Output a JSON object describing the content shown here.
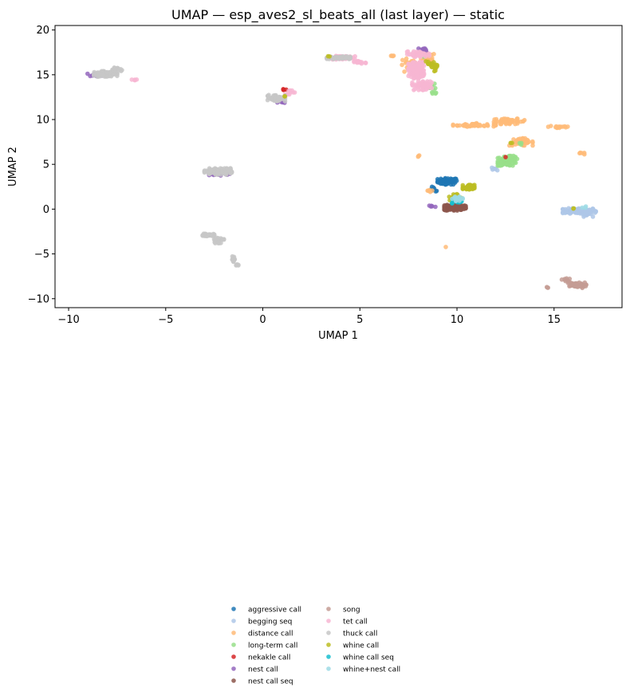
{
  "chart_data": {
    "type": "scatter",
    "title": "UMAP — esp_aves2_sl_beats_all (last layer) — static",
    "xlabel": "UMAP 1",
    "ylabel": "UMAP 2",
    "xlim": [
      -10.7,
      18.5
    ],
    "ylim": [
      -11,
      20.5
    ],
    "xticks": [
      -10,
      -5,
      0,
      5,
      10,
      15
    ],
    "yticks": [
      -10,
      -5,
      0,
      5,
      10,
      15,
      20
    ],
    "grid": false,
    "legend_placement": "bottom-center, two columns",
    "series": [
      {
        "name": "aggressive call",
        "color": "#1f77b4",
        "clusters": [
          [
            9.5,
            3.1,
            0.5,
            0.35,
            70
          ],
          [
            8.8,
            2.2,
            0.25,
            0.3,
            8
          ]
        ]
      },
      {
        "name": "begging seq",
        "color": "#aec7e8",
        "clusters": [
          [
            16.3,
            -0.2,
            0.85,
            0.3,
            110
          ],
          [
            16.7,
            -0.6,
            0.3,
            0.25,
            15
          ],
          [
            12.0,
            4.5,
            0.2,
            0.2,
            6
          ]
        ]
      },
      {
        "name": "distance call",
        "color": "#ffbb78",
        "clusters": [
          [
            10.9,
            9.4,
            1.1,
            0.2,
            45
          ],
          [
            12.7,
            9.8,
            0.8,
            0.3,
            50
          ],
          [
            13.3,
            7.5,
            0.6,
            0.4,
            40
          ],
          [
            15.3,
            9.2,
            0.6,
            0.2,
            14
          ],
          [
            8.5,
            16.8,
            0.35,
            0.6,
            30
          ],
          [
            7.5,
            16.0,
            0.4,
            0.8,
            20
          ],
          [
            6.6,
            17.1,
            0.2,
            0.1,
            4
          ],
          [
            16.4,
            6.2,
            0.2,
            0.1,
            5
          ],
          [
            8.1,
            5.9,
            0.1,
            0.1,
            3
          ],
          [
            9.4,
            -4.2,
            0.05,
            0.05,
            1
          ],
          [
            8.6,
            2.1,
            0.2,
            0.2,
            6
          ]
        ]
      },
      {
        "name": "long-term call",
        "color": "#98df8a",
        "clusters": [
          [
            12.6,
            5.4,
            0.5,
            0.55,
            90
          ],
          [
            13.3,
            7.3,
            0.1,
            0.1,
            3
          ],
          [
            8.8,
            13.5,
            0.2,
            0.6,
            10
          ],
          [
            8.1,
            17.2,
            0.2,
            0.2,
            6
          ]
        ]
      },
      {
        "name": "nekakle call",
        "color": "#d62728",
        "clusters": [
          [
            1.1,
            13.3,
            0.1,
            0.1,
            4
          ],
          [
            12.5,
            5.8,
            0.05,
            0.05,
            1
          ]
        ]
      },
      {
        "name": "nest call",
        "color": "#9467bd",
        "clusters": [
          [
            -8.5,
            15.0,
            0.6,
            0.15,
            20
          ],
          [
            -2.4,
            3.9,
            0.7,
            0.15,
            25
          ],
          [
            1.0,
            11.9,
            0.25,
            0.15,
            8
          ],
          [
            3.6,
            16.9,
            0.3,
            0.1,
            8
          ],
          [
            8.3,
            17.8,
            0.3,
            0.2,
            12
          ],
          [
            8.7,
            0.3,
            0.2,
            0.2,
            6
          ]
        ]
      },
      {
        "name": "nest call seq",
        "color": "#8c564b",
        "clusters": [
          [
            9.9,
            0.2,
            0.55,
            0.35,
            110
          ]
        ]
      },
      {
        "name": "song",
        "color": "#c49c94",
        "clusters": [
          [
            16.1,
            -8.5,
            0.55,
            0.3,
            50
          ],
          [
            15.6,
            -7.9,
            0.2,
            0.2,
            10
          ],
          [
            14.7,
            -8.8,
            0.08,
            0.1,
            3
          ]
        ]
      },
      {
        "name": "tet call",
        "color": "#f7b6d2",
        "clusters": [
          [
            7.9,
            15.5,
            0.4,
            0.9,
            140
          ],
          [
            8.2,
            13.8,
            0.5,
            0.5,
            60
          ],
          [
            8.0,
            17.3,
            0.6,
            0.3,
            40
          ],
          [
            4.3,
            16.9,
            0.7,
            0.2,
            40
          ],
          [
            5.0,
            16.4,
            0.3,
            0.15,
            15
          ],
          [
            -6.6,
            14.4,
            0.15,
            0.1,
            5
          ],
          [
            1.4,
            13.1,
            0.25,
            0.3,
            10
          ]
        ]
      },
      {
        "name": "thuck call",
        "color": "#c7c7c7",
        "clusters": [
          [
            -8.1,
            15.1,
            0.6,
            0.3,
            90
          ],
          [
            -7.5,
            15.6,
            0.25,
            0.2,
            20
          ],
          [
            -2.3,
            4.2,
            0.7,
            0.35,
            140
          ],
          [
            -2.8,
            -2.9,
            0.3,
            0.15,
            25
          ],
          [
            -2.3,
            -3.5,
            0.3,
            0.3,
            20
          ],
          [
            -1.5,
            -5.6,
            0.1,
            0.35,
            15
          ],
          [
            -1.3,
            -6.2,
            0.1,
            0.1,
            5
          ],
          [
            0.7,
            12.4,
            0.45,
            0.35,
            60
          ],
          [
            3.9,
            16.9,
            0.6,
            0.15,
            50
          ]
        ]
      },
      {
        "name": "whine call",
        "color": "#bcbd22",
        "clusters": [
          [
            10.6,
            2.4,
            0.3,
            0.3,
            50
          ],
          [
            9.9,
            1.3,
            0.3,
            0.4,
            25
          ],
          [
            8.9,
            15.9,
            0.2,
            0.5,
            15
          ],
          [
            8.6,
            16.2,
            0.2,
            0.3,
            10
          ],
          [
            3.4,
            17.1,
            0.05,
            0.05,
            2
          ],
          [
            1.1,
            12.6,
            0.05,
            0.05,
            2
          ],
          [
            16.0,
            0.1,
            0.05,
            0.05,
            2
          ],
          [
            12.8,
            7.4,
            0.05,
            0.05,
            2
          ]
        ]
      },
      {
        "name": "whine call seq",
        "color": "#17becf",
        "clusters": [
          [
            10.0,
            0.9,
            0.25,
            0.3,
            20
          ]
        ]
      },
      {
        "name": "whine+nest call",
        "color": "#9edae5",
        "clusters": [
          [
            10.0,
            1.2,
            0.3,
            0.3,
            15
          ],
          [
            16.6,
            0.2,
            0.15,
            0.1,
            3
          ]
        ]
      }
    ]
  }
}
